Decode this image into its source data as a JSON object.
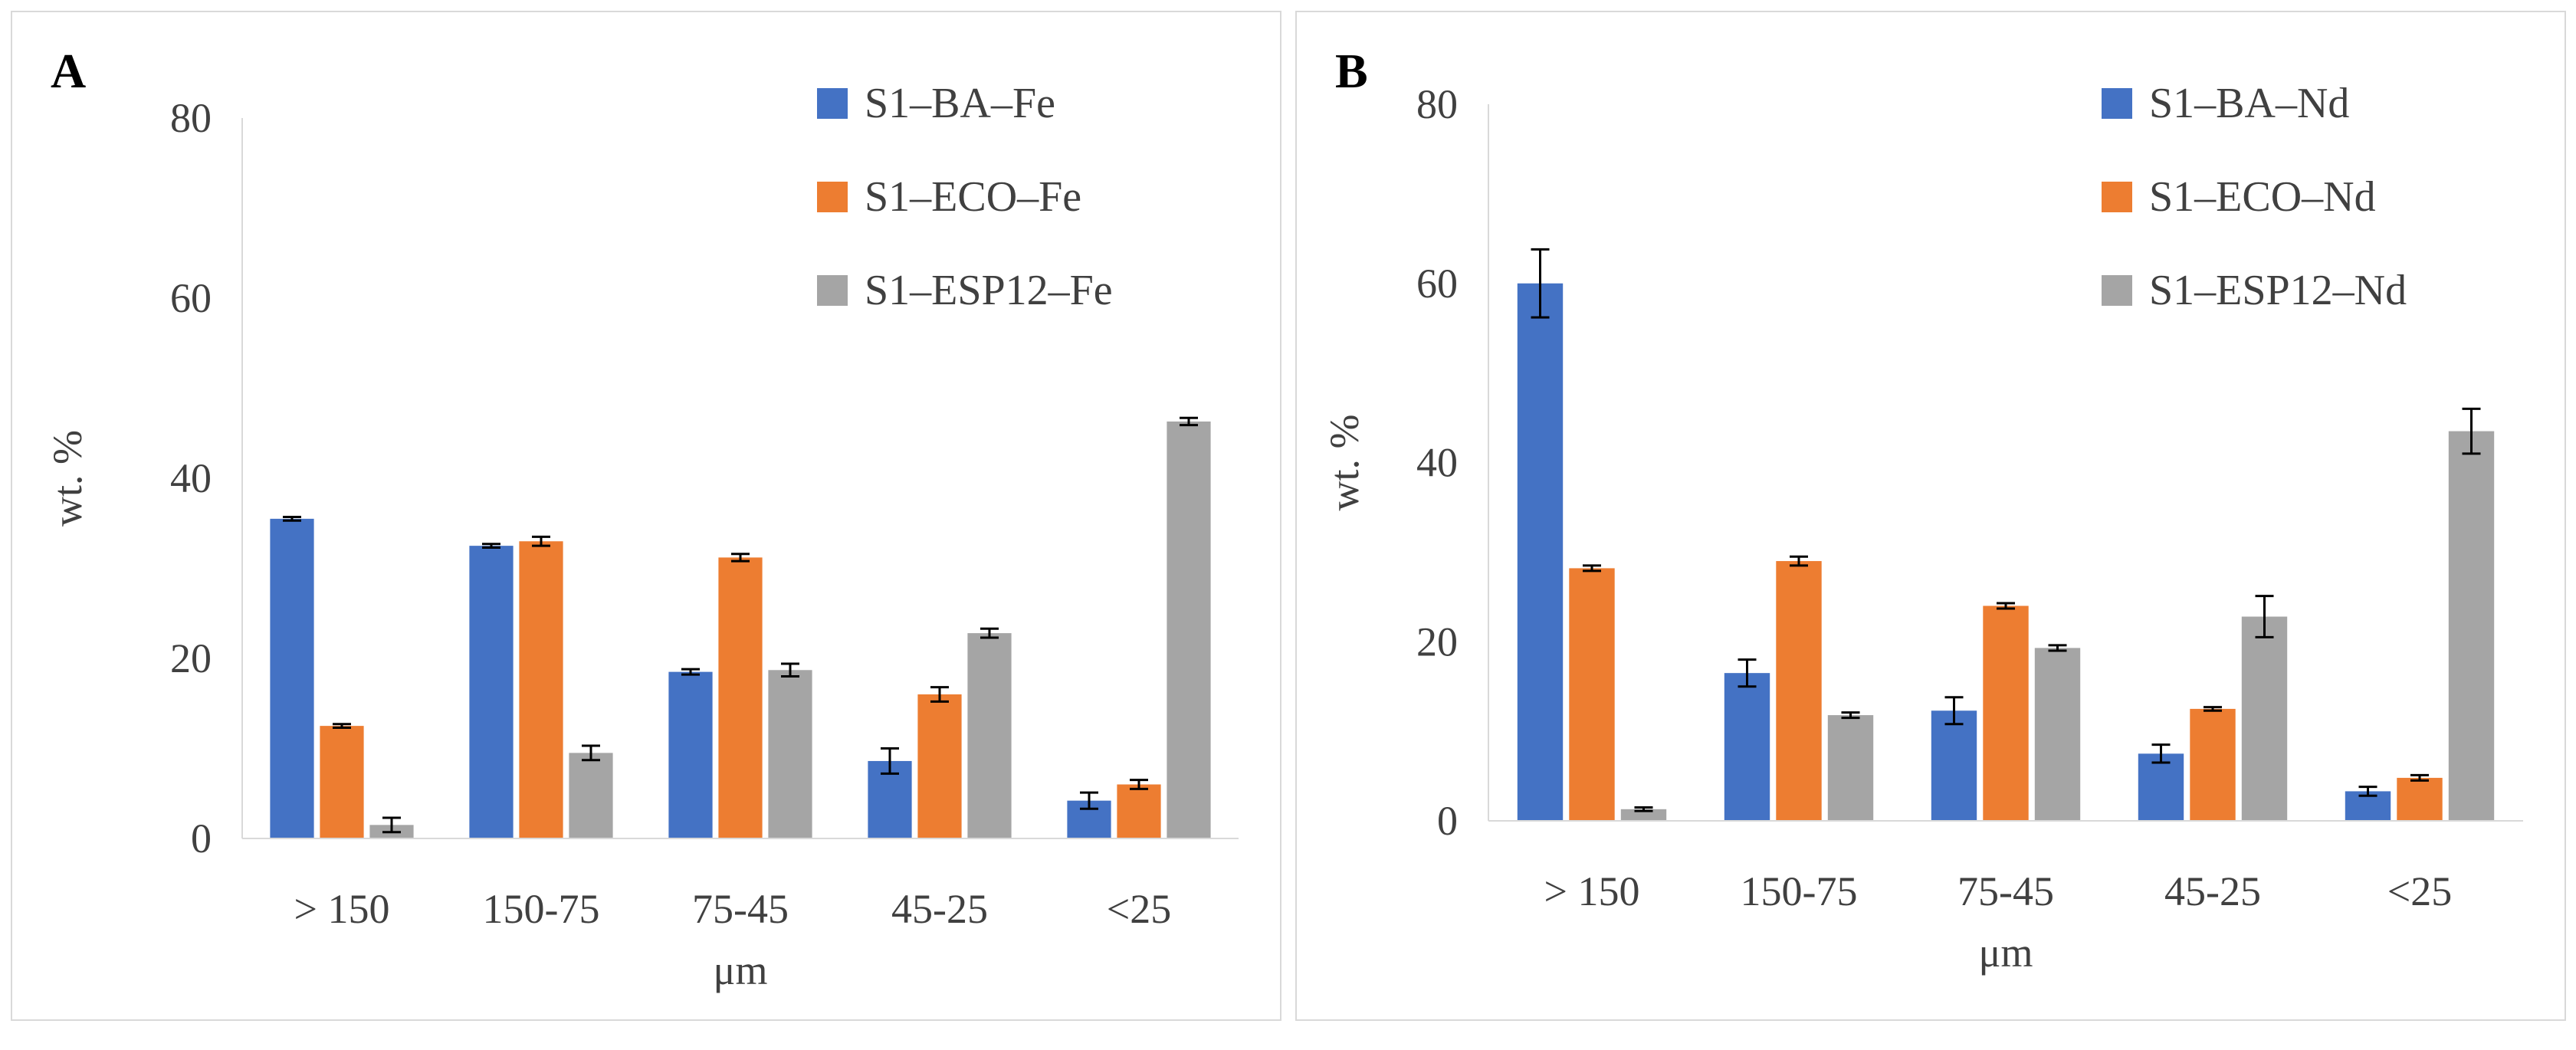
{
  "colors": {
    "series": [
      "#4472C4",
      "#ED7D31",
      "#A5A5A5"
    ],
    "axis": "#D9D9D9",
    "error": "#000000"
  },
  "chart_data": [
    {
      "panel_label": "A",
      "type": "bar",
      "categories": [
        "> 150",
        "150-75",
        "75-45",
        "45-25",
        "<25"
      ],
      "xlabel": "μm",
      "ylabel": "wt. %",
      "ylim": [
        0,
        80
      ],
      "yticks": [
        "0",
        "20",
        "40",
        "60",
        "80"
      ],
      "grid": false,
      "legend_position": "top-right",
      "series": [
        {
          "name": "S1–BA–Fe",
          "values": [
            35.5,
            32.5,
            18.5,
            8.6,
            4.2
          ],
          "errors": [
            0.2,
            0.2,
            0.3,
            1.4,
            0.9
          ]
        },
        {
          "name": "S1–ECO–Fe",
          "values": [
            12.5,
            33.0,
            31.2,
            16.0,
            6.0
          ],
          "errors": [
            0.2,
            0.5,
            0.4,
            0.8,
            0.5
          ]
        },
        {
          "name": "S1–ESP12–Fe",
          "values": [
            1.5,
            9.5,
            18.7,
            22.8,
            46.3
          ],
          "errors": [
            0.8,
            0.8,
            0.7,
            0.5,
            0.4
          ]
        }
      ]
    },
    {
      "panel_label": "B",
      "type": "bar",
      "categories": [
        "> 150",
        "150-75",
        "75-45",
        "45-25",
        "<25"
      ],
      "xlabel": "μm",
      "ylabel": "wt. %",
      "ylim": [
        0,
        80
      ],
      "yticks": [
        "0",
        "20",
        "40",
        "60",
        "80"
      ],
      "grid": false,
      "legend_position": "top-right",
      "series": [
        {
          "name": "S1–BA–Nd",
          "values": [
            60.0,
            16.5,
            12.3,
            7.5,
            3.3
          ],
          "errors": [
            3.8,
            1.5,
            1.5,
            1.0,
            0.5
          ]
        },
        {
          "name": "S1–ECO–Nd",
          "values": [
            28.2,
            29.0,
            24.0,
            12.5,
            4.8
          ],
          "errors": [
            0.3,
            0.5,
            0.3,
            0.2,
            0.3
          ]
        },
        {
          "name": "S1–ESP12–Nd",
          "values": [
            1.3,
            11.8,
            19.3,
            22.8,
            43.5
          ],
          "errors": [
            0.2,
            0.3,
            0.3,
            2.3,
            2.5
          ]
        }
      ]
    }
  ]
}
